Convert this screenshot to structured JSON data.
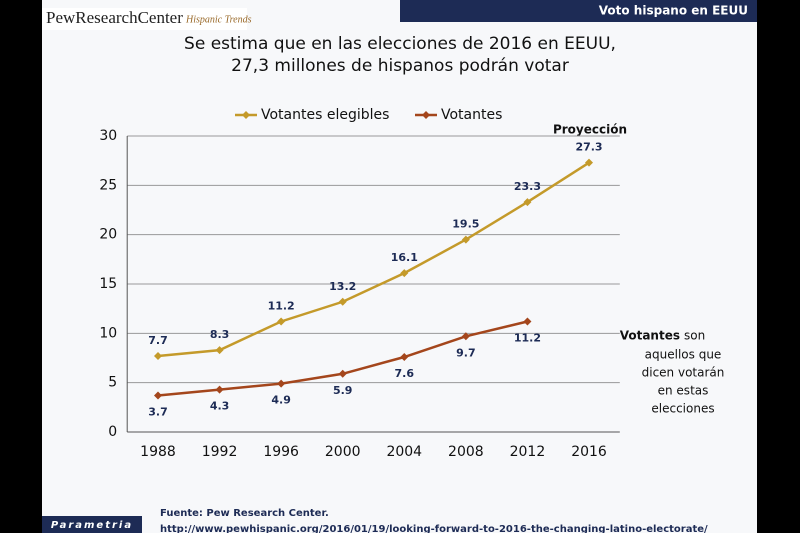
{
  "header": {
    "logo": "PewResearchCenter",
    "logo_sub": "Hispanic Trends",
    "banner": "Voto hispano en EEUU"
  },
  "chart_data": {
    "type": "line",
    "title": [
      "Se estima que en las elecciones de 2016 en EEUU,",
      "27,3 millones de hispanos podrán votar"
    ],
    "categories": [
      "1988",
      "1992",
      "1996",
      "2000",
      "2004",
      "2008",
      "2012",
      "2016"
    ],
    "series": [
      {
        "name": "Votantes elegibles",
        "color": "#c49a2a",
        "values": [
          7.7,
          8.3,
          11.2,
          13.2,
          16.1,
          19.5,
          23.3,
          27.3
        ]
      },
      {
        "name": "Votantes",
        "color": "#a4461c",
        "values": [
          3.7,
          4.3,
          4.9,
          5.9,
          7.6,
          9.7,
          11.2,
          null
        ]
      }
    ],
    "ylim": [
      0,
      30
    ],
    "yticks": [
      0,
      5,
      10,
      15,
      20,
      25,
      30
    ],
    "grid": true,
    "legend": "top",
    "annotations": {
      "projection": "Proyección",
      "note_bold": "Votantes",
      "note": [
        "son",
        "aquellos que",
        "dicen votarán",
        "en estas",
        "elecciones"
      ]
    }
  },
  "footer": {
    "source": "Fuente: Pew Research Center.",
    "url": "http://www.pewhispanic.org/2016/01/19/looking-forward-to-2016-the-changing-latino-electorate/",
    "brand": "Parametria"
  }
}
